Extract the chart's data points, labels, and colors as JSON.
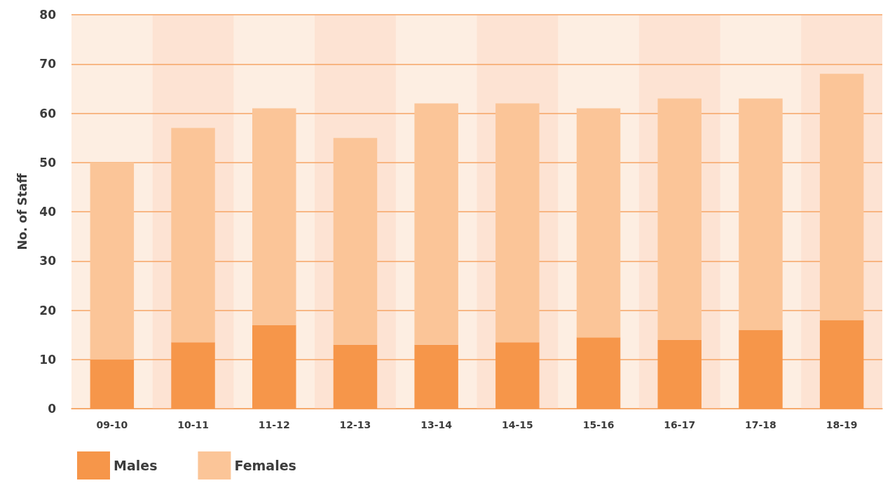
{
  "chart_data": {
    "type": "bar",
    "stacked": true,
    "ylabel": "No. of Staff",
    "categories": [
      "09-10",
      "10-11",
      "11-12",
      "12-13",
      "13-14",
      "14-15",
      "15-16",
      "16-17",
      "17-18",
      "18-19"
    ],
    "series": [
      {
        "name": "Males",
        "color": "#f6964a",
        "values": [
          10,
          13.5,
          17,
          13,
          13,
          13.5,
          14.5,
          14,
          16,
          18
        ]
      },
      {
        "name": "Females",
        "color": "#fbc598",
        "values": [
          40,
          43.5,
          44,
          42,
          49,
          48.5,
          46.5,
          49,
          47,
          50
        ]
      }
    ],
    "bands": [
      {
        "axis": "x",
        "from": "10-11",
        "to": "10-11",
        "color": "#fde3d3"
      },
      {
        "axis": "x",
        "from": "12-13",
        "to": "12-13",
        "color": "#fde3d3"
      },
      {
        "axis": "x",
        "from": "14-15",
        "to": "14-15",
        "color": "#fde3d3"
      },
      {
        "axis": "x",
        "from": "16-17",
        "to": "16-17",
        "color": "#fde3d3"
      },
      {
        "axis": "x",
        "from": "18-19",
        "to": "18-19",
        "color": "#fde3d3"
      }
    ],
    "ylim": [
      0,
      80
    ],
    "yticks": [
      0,
      10,
      20,
      30,
      40,
      50,
      60,
      70,
      80
    ],
    "grid": "y",
    "legend": "bottom left"
  }
}
